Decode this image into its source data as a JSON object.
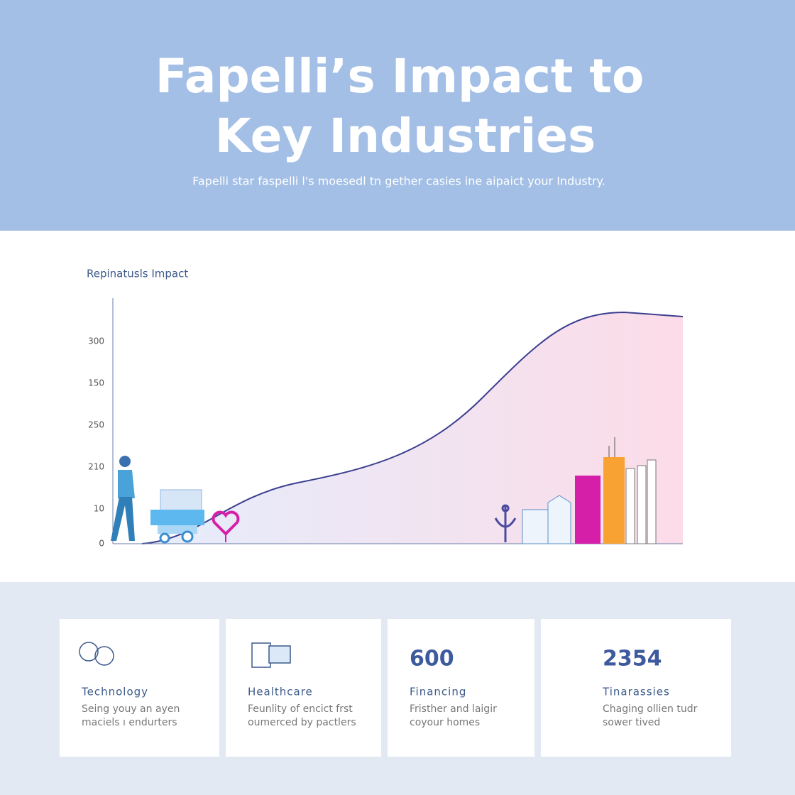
{
  "header": {
    "title_lines": [
      "Fapelli’s Impact to",
      "Key Industries"
    ],
    "subtitle": "Fapelli star faspelli l's moesedl tn gether casies ine aipaict your Industry."
  },
  "chart": {
    "title": "Repinatusls Impact",
    "y_labels": [
      "300",
      "150",
      "250",
      "210",
      "10",
      "0"
    ]
  },
  "cards": [
    {
      "label": "Technology",
      "text": [
        "Seing youy an ayen",
        "maciels ı endurters"
      ]
    },
    {
      "label": "Healthcare",
      "text": [
        "Feunlity of encict frst",
        "oumerced by pactlers"
      ]
    },
    {
      "stat": "600",
      "label": "Financing",
      "text": [
        "Fristher and laigir",
        "coyour homes"
      ]
    },
    {
      "stat": "2354",
      "label": "Tinarassies",
      "text": [
        "Chaging ollien tudr",
        "sower tived"
      ]
    }
  ]
}
